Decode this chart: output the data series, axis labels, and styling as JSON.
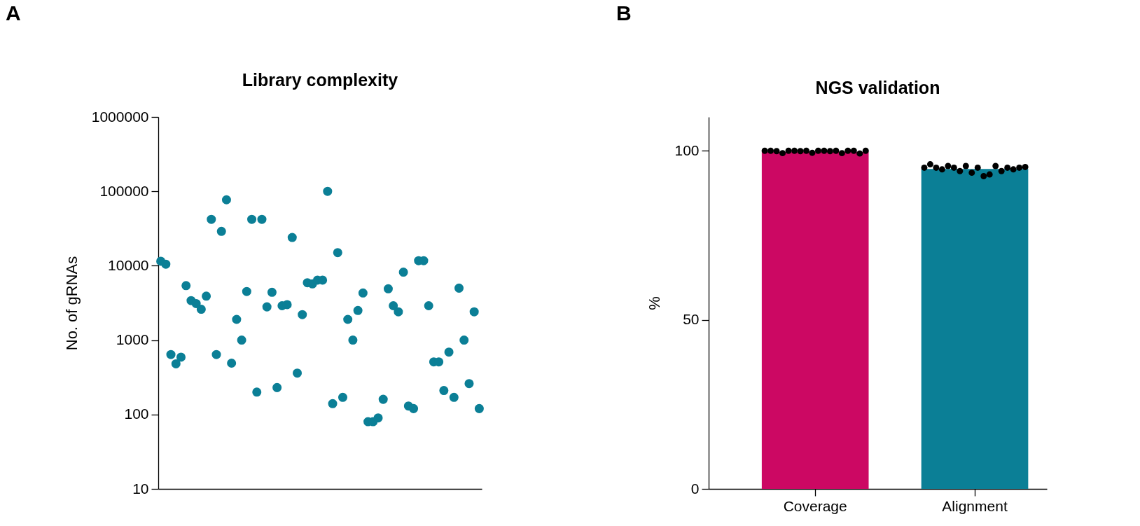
{
  "chart_data": [
    {
      "type": "scatter",
      "title": "Library complexity",
      "ylabel": "No. of gRNAs",
      "annotations": [
        "A"
      ],
      "log": true,
      "marker": "circle",
      "color": "#0b7f96",
      "categories": [
        null,
        null,
        null,
        null,
        null,
        null,
        null,
        null,
        null,
        null,
        null,
        null,
        null,
        null,
        null,
        null,
        null,
        null,
        null,
        null,
        null,
        null,
        null,
        null,
        null,
        null,
        null,
        null,
        null,
        null,
        null,
        null,
        null,
        null,
        null,
        null,
        null,
        null,
        null,
        null,
        null,
        null,
        null,
        null,
        null,
        null,
        null,
        null,
        null,
        null,
        null,
        null,
        null,
        null,
        null,
        null,
        null,
        null,
        null,
        null,
        null,
        null,
        null,
        null
      ],
      "values": [
        11500,
        10500,
        640,
        480,
        590,
        5400,
        3400,
        3100,
        2600,
        3900,
        42000,
        640,
        29000,
        77000,
        490,
        1900,
        1000,
        4500,
        42000,
        200,
        42000,
        2800,
        4400,
        230,
        2900,
        3000,
        24000,
        360,
        2200,
        5900,
        5700,
        6400,
        6400,
        100000,
        140,
        15000,
        170,
        1900,
        1000,
        2500,
        4300,
        80,
        80,
        90,
        160,
        4900,
        2900,
        2400,
        8200,
        130,
        120,
        11700,
        11700,
        2900,
        510,
        510,
        210,
        690,
        170,
        5000,
        1000,
        260,
        2400,
        120
      ],
      "ylim": [
        10,
        1000000
      ],
      "yticks": [
        10,
        100,
        1000,
        10000,
        100000,
        1000000
      ]
    },
    {
      "type": "bar",
      "title": "NGS validation",
      "ylabel": "%",
      "annotations": [
        "B"
      ],
      "categories": [
        "Coverage",
        "Alignment"
      ],
      "series": [
        {
          "type": "bar",
          "colors": [
            "#cc0863",
            "#0b7f96"
          ],
          "values": [
            99.7,
            94.6
          ]
        },
        {
          "type": "scatter",
          "color": "#000000",
          "x": [
            "Coverage",
            "Coverage",
            "Coverage",
            "Coverage",
            "Coverage",
            "Coverage",
            "Coverage",
            "Coverage",
            "Coverage",
            "Coverage",
            "Coverage",
            "Coverage",
            "Coverage",
            "Coverage",
            "Coverage",
            "Coverage",
            "Coverage",
            "Coverage",
            "Alignment",
            "Alignment",
            "Alignment",
            "Alignment",
            "Alignment",
            "Alignment",
            "Alignment",
            "Alignment",
            "Alignment",
            "Alignment",
            "Alignment",
            "Alignment",
            "Alignment",
            "Alignment",
            "Alignment",
            "Alignment",
            "Alignment",
            "Alignment"
          ],
          "values": [
            100,
            100,
            99.9,
            99.3,
            100,
            100,
            99.9,
            100,
            99.4,
            100,
            100,
            99.9,
            100,
            99.3,
            100,
            100,
            99.2,
            100,
            95,
            96,
            95,
            94.5,
            95.5,
            95,
            94,
            95.5,
            93.5,
            95,
            92.5,
            93,
            95.5,
            94,
            95,
            94.5,
            95,
            95.2
          ]
        }
      ],
      "marker": "circle",
      "ylim": [
        0,
        110
      ],
      "yticks": [
        0,
        50,
        100
      ]
    }
  ]
}
